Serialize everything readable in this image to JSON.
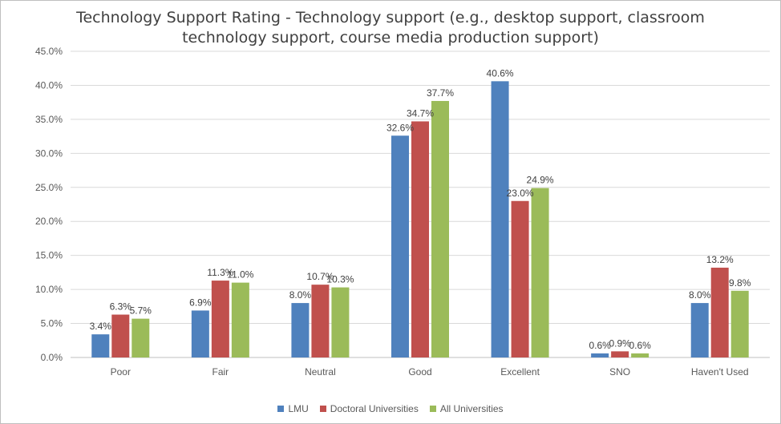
{
  "chart_data": {
    "type": "bar",
    "title_line1": "Technology Support Rating - Technology support (e.g., desktop support, classroom",
    "title_line2": "technology support, course media production support)",
    "categories": [
      "Poor",
      "Fair",
      "Neutral",
      "Good",
      "Excellent",
      "SNO",
      "Haven't Used"
    ],
    "series": [
      {
        "name": "LMU",
        "color": "#4f81bd",
        "values": [
          3.4,
          6.9,
          8.0,
          32.6,
          40.6,
          0.6,
          8.0
        ],
        "labels": [
          "3.4%",
          "6.9%",
          "8.0%",
          "32.6%",
          "40.6%",
          "0.6%",
          "8.0%"
        ]
      },
      {
        "name": "Doctoral Universities",
        "color": "#c0504d",
        "values": [
          6.3,
          11.3,
          10.7,
          34.7,
          23.0,
          0.9,
          13.2
        ],
        "labels": [
          "6.3%",
          "11.3%",
          "10.7%",
          "34.7%",
          "23.0%",
          "0.9%",
          "13.2%"
        ]
      },
      {
        "name": "All Universities",
        "color": "#9bbb59",
        "values": [
          5.7,
          11.0,
          10.3,
          37.7,
          24.9,
          0.6,
          9.8
        ],
        "labels": [
          "5.7%",
          "11.0%",
          "10.3%",
          "37.7%",
          "24.9%",
          "0.6%",
          "9.8%"
        ]
      }
    ],
    "ylim": [
      0,
      45
    ],
    "yticks": [
      "0.0%",
      "5.0%",
      "10.0%",
      "15.0%",
      "20.0%",
      "25.0%",
      "30.0%",
      "35.0%",
      "40.0%",
      "45.0%"
    ],
    "grid": true,
    "legend_position": "bottom"
  }
}
